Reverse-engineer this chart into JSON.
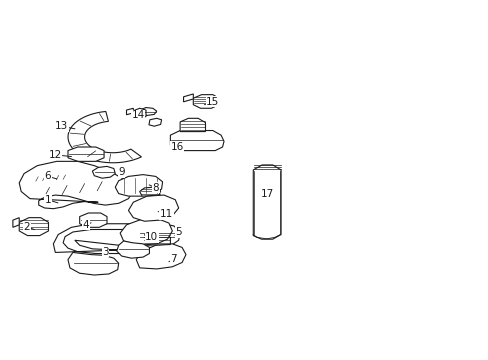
{
  "bg": "#ffffff",
  "lc": "#1a1a1a",
  "lw": 0.8,
  "fig_w": 4.89,
  "fig_h": 3.6,
  "dpi": 100,
  "labels": {
    "1": [
      0.097,
      0.445,
      0.12,
      0.435
    ],
    "2": [
      0.054,
      0.37,
      0.072,
      0.36
    ],
    "3": [
      0.215,
      0.3,
      0.22,
      0.31
    ],
    "4": [
      0.175,
      0.375,
      0.188,
      0.382
    ],
    "5": [
      0.365,
      0.355,
      0.355,
      0.342
    ],
    "6": [
      0.097,
      0.51,
      0.118,
      0.502
    ],
    "7": [
      0.355,
      0.28,
      0.345,
      0.272
    ],
    "8": [
      0.318,
      0.478,
      0.302,
      0.488
    ],
    "9": [
      0.248,
      0.522,
      0.24,
      0.512
    ],
    "10": [
      0.31,
      0.34,
      0.295,
      0.348
    ],
    "11": [
      0.34,
      0.405,
      0.323,
      0.412
    ],
    "12": [
      0.112,
      0.57,
      0.148,
      0.565
    ],
    "13": [
      0.125,
      0.65,
      0.155,
      0.642
    ],
    "14": [
      0.282,
      0.68,
      0.292,
      0.668
    ],
    "15": [
      0.435,
      0.718,
      0.418,
      0.71
    ],
    "16": [
      0.362,
      0.592,
      0.372,
      0.602
    ],
    "17": [
      0.548,
      0.462,
      0.535,
      0.452
    ]
  }
}
